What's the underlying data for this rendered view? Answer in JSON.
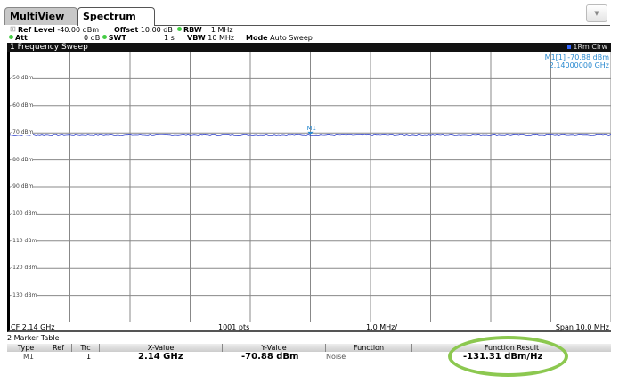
{
  "tabs": [
    {
      "label": "MultiView"
    },
    {
      "label": "Spectrum"
    }
  ],
  "header": {
    "ref_level_label": "Ref Level",
    "ref_level": "-40.00 dBm",
    "offset_label": "Offset",
    "offset": "10.00 dB",
    "rbw_label": "RBW",
    "rbw": "1 MHz",
    "att_label": "Att",
    "att": "0 dB",
    "swt_label": "SWT",
    "swt": "1 s",
    "vbw_label": "VBW",
    "vbw": "10 MHz",
    "mode_label": "Mode",
    "mode": "Auto Sweep"
  },
  "window": {
    "title": "1 Frequency Sweep",
    "trace_info": "1Rm Clrw"
  },
  "marker_readout": {
    "name": "M1[1]",
    "level": "-70.88 dBm",
    "freq": "2.14000000 GHz",
    "label": "M1"
  },
  "chart_data": {
    "type": "line",
    "ylim": [
      -140,
      -40
    ],
    "yticks": [
      "-50 dBm",
      "-60 dBm",
      "-70 dBm",
      "-80 dBm",
      "-90 dBm",
      "-100 dBm",
      "-110 dBm",
      "-120 dBm",
      "-130 dBm"
    ],
    "ytick_values": [
      -50,
      -60,
      -70,
      -80,
      -90,
      -100,
      -110,
      -120,
      -130
    ],
    "xlim_ghz": [
      2.135,
      2.145
    ],
    "grid": true,
    "series": [
      {
        "level_dbm": -70.88,
        "color": "#3344cc"
      }
    ],
    "marker": {
      "x_ghz": 2.14,
      "y_dbm": -70.88
    }
  },
  "footer": {
    "cf": "CF 2.14 GHz",
    "pts": "1001 pts",
    "div": "1.0 MHz/",
    "span": "Span 10.0 MHz"
  },
  "marker_table": {
    "title": "2 Marker Table",
    "columns": [
      "Type",
      "Ref",
      "Trc",
      "X-Value",
      "Y-Value",
      "Function",
      "Function Result"
    ],
    "rows": [
      {
        "type": "M1",
        "ref": "",
        "trc": "1",
        "x": "2.14 GHz",
        "y": "-70.88 dBm",
        "function": "Noise",
        "result": "-131.31 dBm/Hz"
      }
    ]
  },
  "highlight_color": "#8cc850"
}
